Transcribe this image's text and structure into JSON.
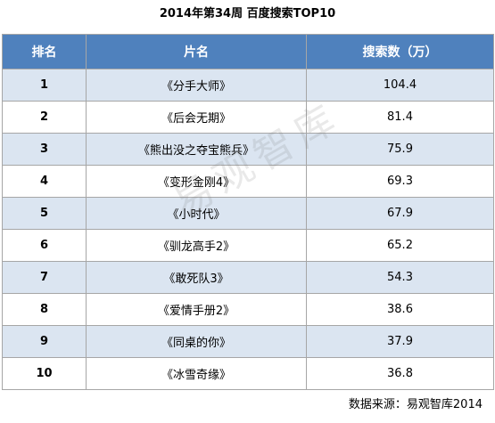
{
  "title": "2014年第34周 百度搜索TOP10",
  "source": "数据来源：易观智库2014",
  "watermark": "易观智库",
  "colors": {
    "header_bg": "#4f81bd",
    "header_text": "#ffffff",
    "row_alt_bg": "#dbe5f1",
    "border": "#a6a6a6"
  },
  "chart_data": {
    "type": "table",
    "columns": [
      "排名",
      "片名",
      "搜索数（万）"
    ],
    "rows": [
      {
        "rank": "1",
        "name": "《分手大师》",
        "value": 104.4
      },
      {
        "rank": "2",
        "name": "《后会无期》",
        "value": 81.4
      },
      {
        "rank": "3",
        "name": "《熊出没之夺宝熊兵》",
        "value": 75.9
      },
      {
        "rank": "4",
        "name": "《变形金刚4》",
        "value": 69.3
      },
      {
        "rank": "5",
        "name": "《小时代》",
        "value": 67.9
      },
      {
        "rank": "6",
        "name": "《驯龙高手2》",
        "value": 65.2
      },
      {
        "rank": "7",
        "name": "《敢死队3》",
        "value": 54.3
      },
      {
        "rank": "8",
        "name": "《爱情手册2》",
        "value": 38.6
      },
      {
        "rank": "9",
        "name": "《同桌的你》",
        "value": 37.9
      },
      {
        "rank": "10",
        "name": "《冰雪奇缘》",
        "value": 36.8
      }
    ]
  }
}
